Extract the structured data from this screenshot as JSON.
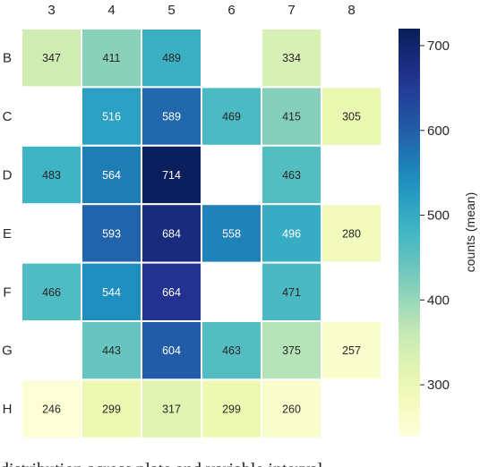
{
  "chart_data": {
    "type": "heatmap",
    "columns": [
      "3",
      "4",
      "5",
      "6",
      "7",
      "8"
    ],
    "rows": [
      "B",
      "C",
      "D",
      "E",
      "F",
      "G",
      "H"
    ],
    "values": [
      [
        347,
        411,
        489,
        null,
        334,
        null
      ],
      [
        null,
        516,
        589,
        469,
        415,
        305
      ],
      [
        483,
        564,
        714,
        null,
        463,
        null
      ],
      [
        null,
        593,
        684,
        558,
        496,
        280
      ],
      [
        466,
        544,
        664,
        null,
        471,
        null
      ],
      [
        null,
        443,
        604,
        463,
        375,
        257
      ],
      [
        246,
        299,
        317,
        299,
        260,
        null
      ]
    ],
    "colorbar": {
      "label": "counts (mean)",
      "range": [
        240,
        720
      ],
      "ticks": [
        300,
        400,
        500,
        600,
        700
      ]
    },
    "colormap": "YlGnBu",
    "x_axis_position": "top"
  },
  "caption_text": "distribution across plate and variable interval"
}
